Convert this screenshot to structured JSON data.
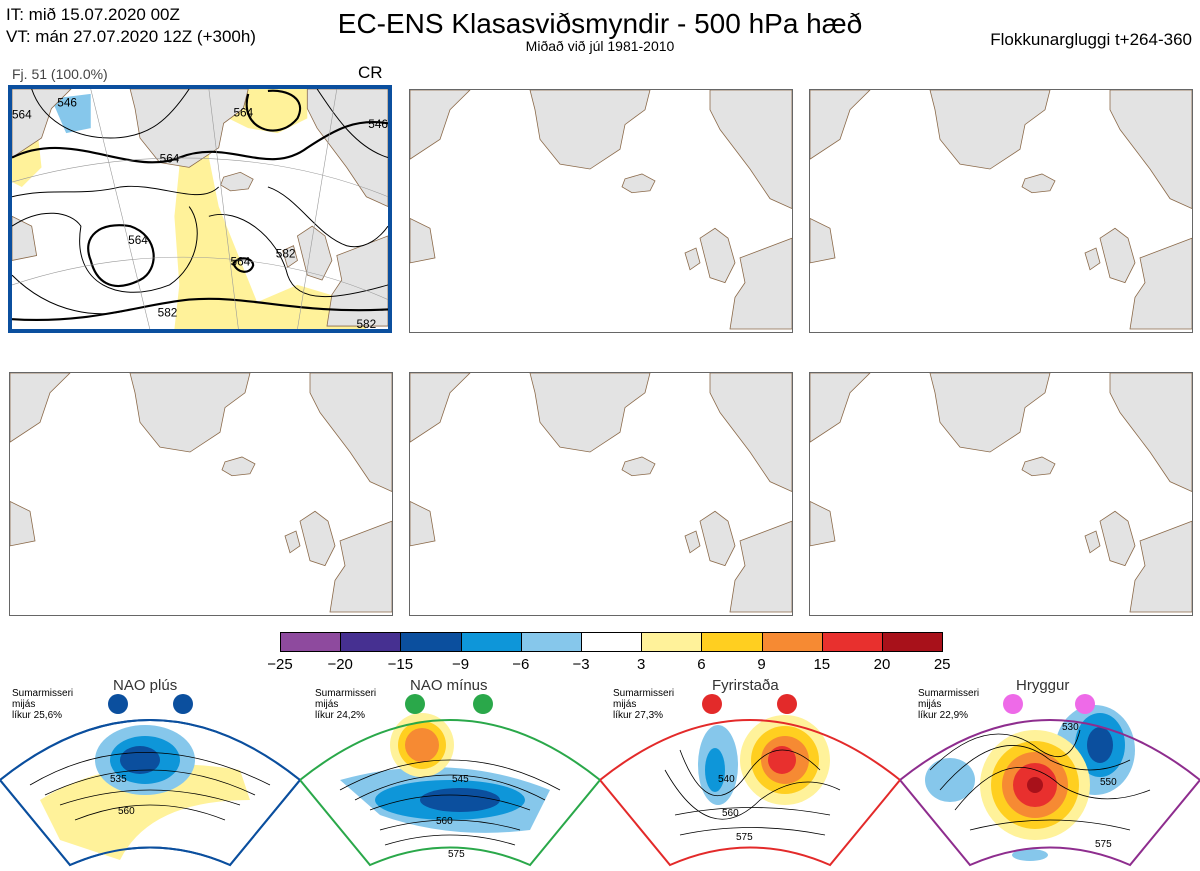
{
  "header": {
    "it_line": "IT: mið 15.07.2020 00Z",
    "vt_line": "VT: mán 27.07.2020 12Z  (+300h)",
    "title": "EC-ENS Klasasviðsmyndir - 500 hPa hæð",
    "subtitle": "Miðað við júl 1981-2010",
    "window": "Flokkunargluggi t+264-360"
  },
  "main_panel": {
    "member_label": "Fj. 51 (100.0%)",
    "class_label": "CR",
    "contour_labels": [
      "564",
      "546",
      "564",
      "564",
      "564",
      "582",
      "582",
      "564",
      "546",
      "582"
    ]
  },
  "colorbar": {
    "colors": [
      "#8e4a9e",
      "#463091",
      "#0b4f9e",
      "#0e96d9",
      "#86c7eb",
      "#ffffff",
      "#fff29a",
      "#ffcf20",
      "#f68a33",
      "#e8302e",
      "#a8111a"
    ],
    "ticks": [
      "−25",
      "−20",
      "−15",
      "−9",
      "−6",
      "−3",
      "3",
      "6",
      "9",
      "15",
      "20",
      "25"
    ]
  },
  "regimes": [
    {
      "title": "NAO plús",
      "note1": "Sumarmisseri",
      "note2": "mijás",
      "note3": "líkur 25,6%",
      "color": "#0b4f9e",
      "labels": [
        "535",
        "560"
      ]
    },
    {
      "title": "NAO mínus",
      "note1": "Sumarmisseri",
      "note2": "mijás",
      "note3": "líkur 24,2%",
      "color": "#2aa84a",
      "labels": [
        "545",
        "560",
        "575"
      ]
    },
    {
      "title": "Fyrirstaða",
      "note1": "Sumarmisseri",
      "note2": "mijás",
      "note3": "líkur 27,3%",
      "color": "#e32a2a",
      "labels": [
        "540",
        "560",
        "575"
      ]
    },
    {
      "title": "Hryggur",
      "note1": "Sumarmisseri",
      "note2": "mijás",
      "note3": "líkur 22,9%",
      "color": "#8e2d8e",
      "labels": [
        "530",
        "550",
        "575"
      ]
    }
  ]
}
